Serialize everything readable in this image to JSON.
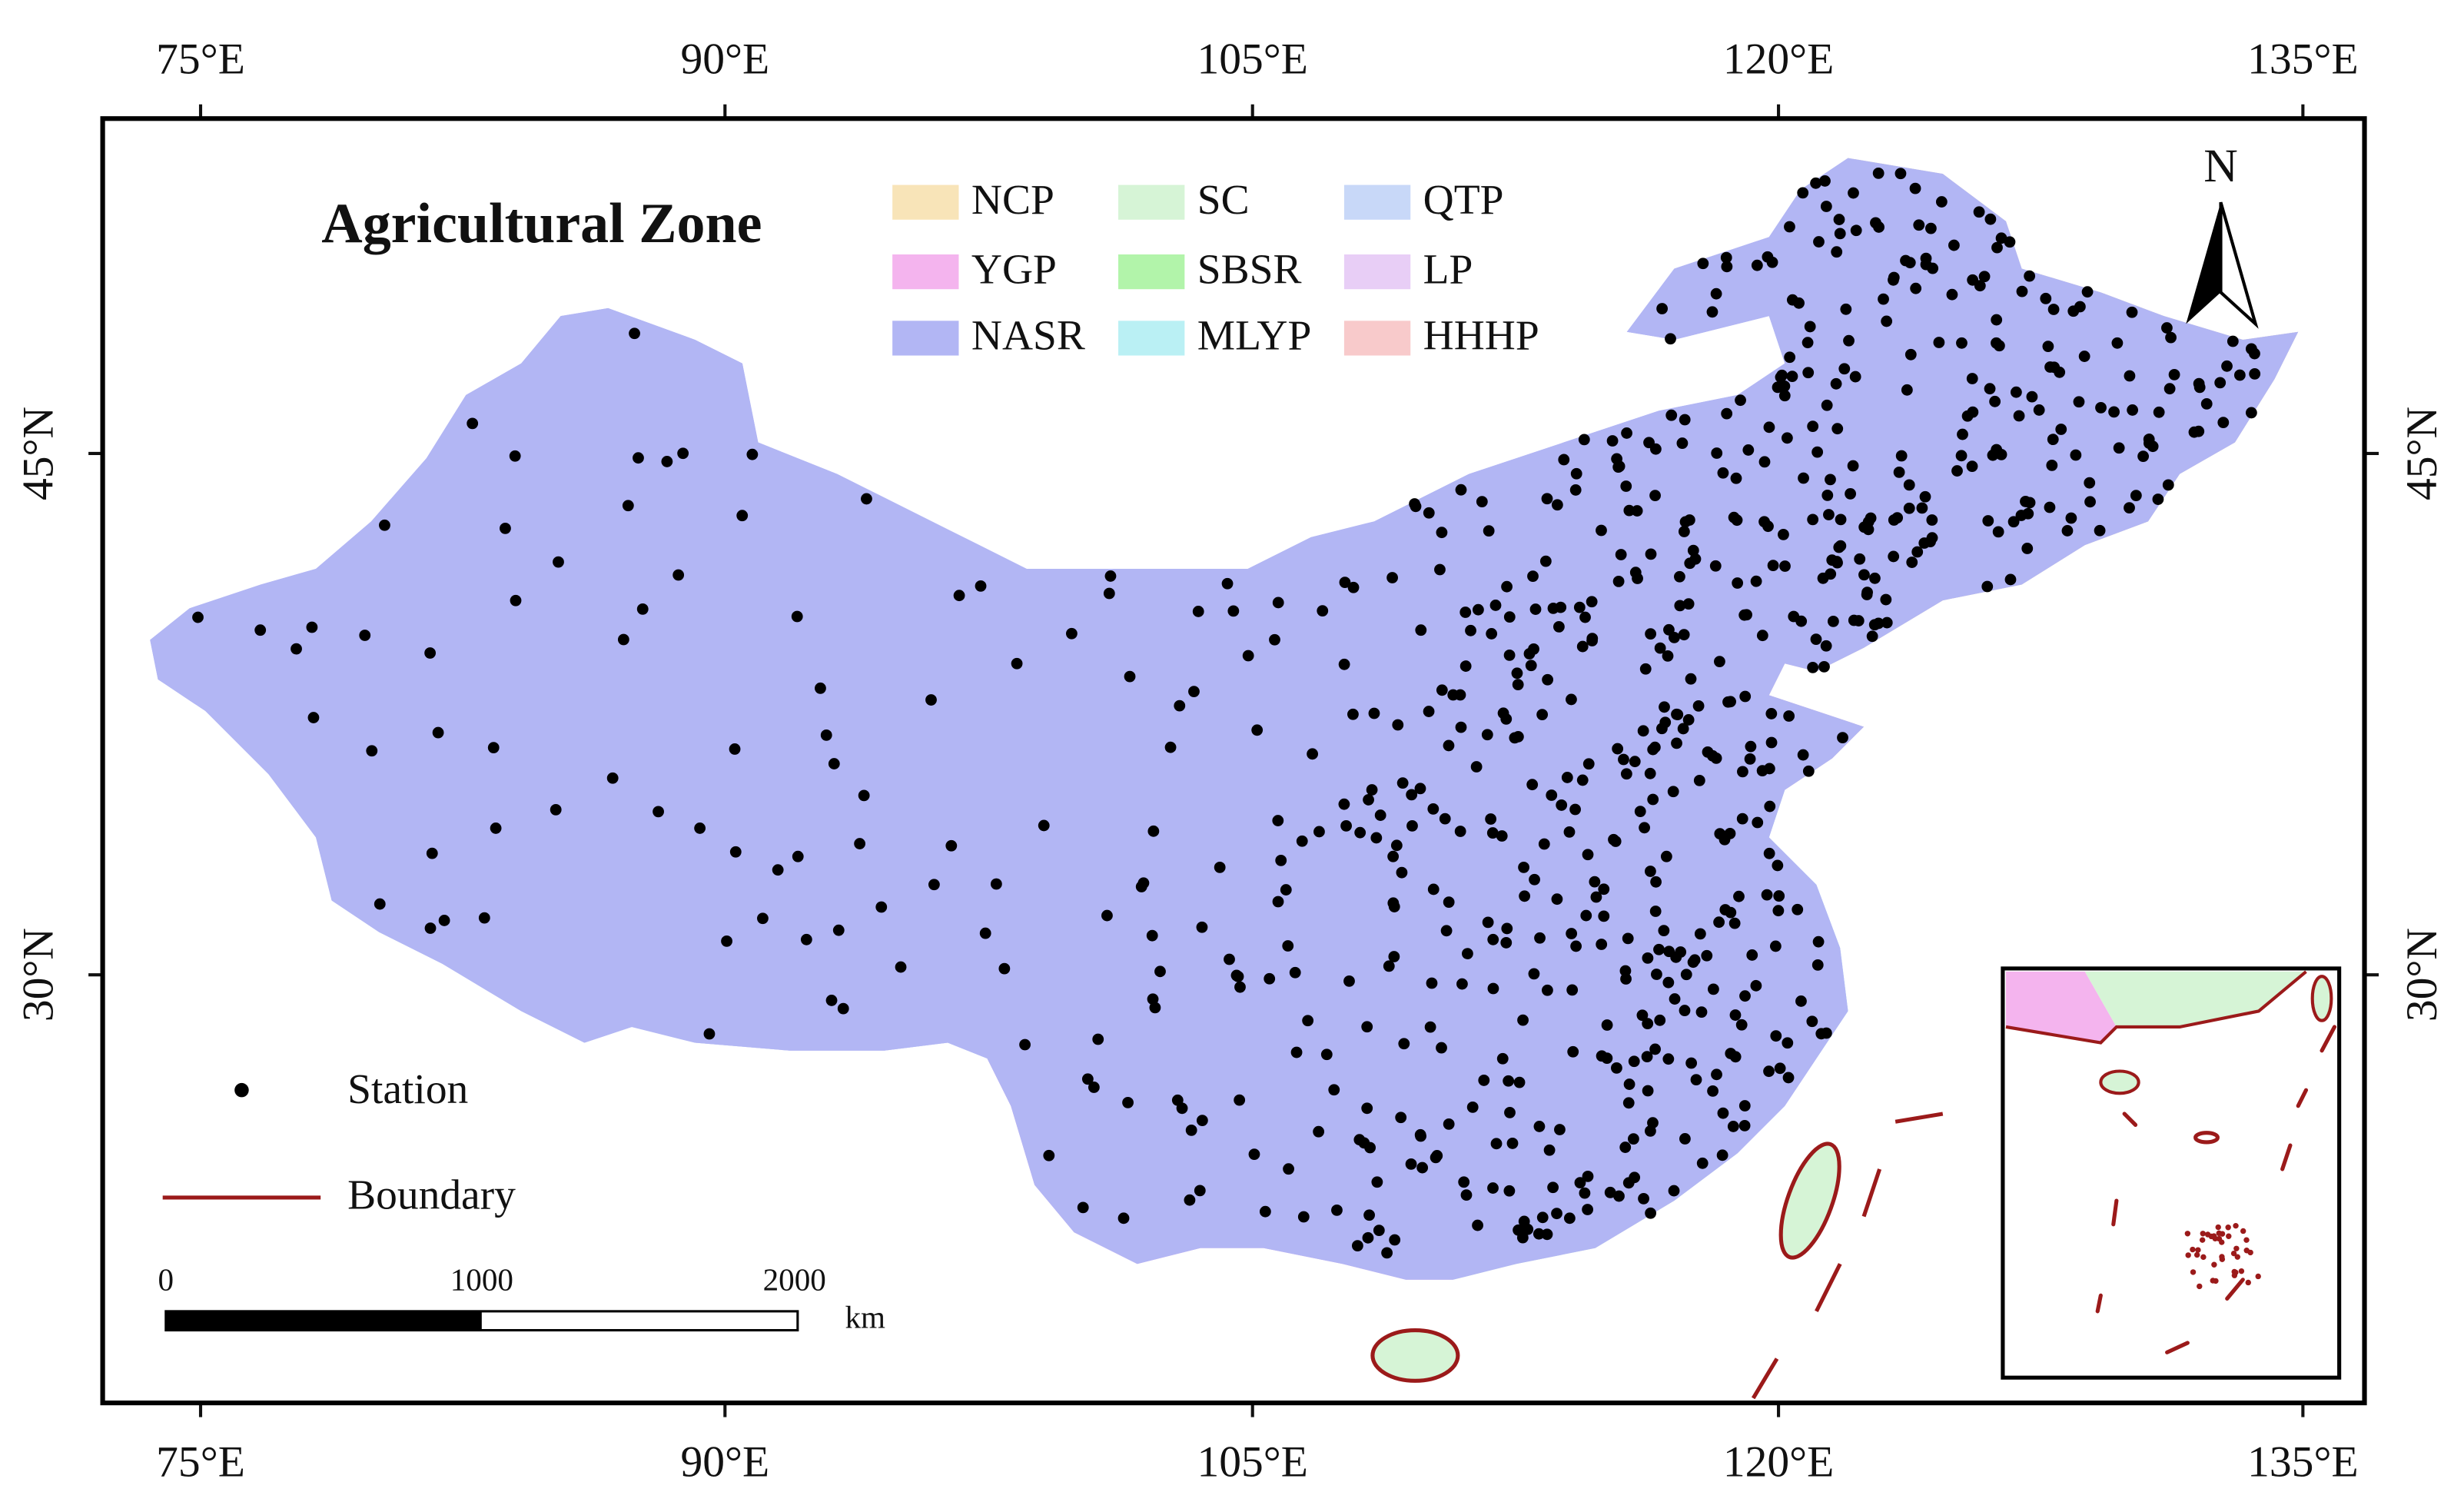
{
  "title": "Agricultural Zone",
  "legend": {
    "zones": [
      {
        "code": "NCP",
        "color": "#f8e4b8"
      },
      {
        "code": "YGP",
        "color": "#f4b4ee"
      },
      {
        "code": "NASR",
        "color": "#b2b6f4"
      },
      {
        "code": "SC",
        "color": "#d6f4d6"
      },
      {
        "code": "SBSR",
        "color": "#b2f4aa"
      },
      {
        "code": "MLYP",
        "color": "#baf0f4"
      },
      {
        "code": "QTP",
        "color": "#c8d8f8"
      },
      {
        "code": "LP",
        "color": "#e8cef6"
      },
      {
        "code": "HHHP",
        "color": "#f8cacb"
      }
    ]
  },
  "station_legend": "Station",
  "boundary_legend": "Boundary",
  "longitude_labels": [
    "75°E",
    "90°E",
    "105°E",
    "120°E",
    "135°E"
  ],
  "latitude_labels": [
    "45°N",
    "30°N"
  ],
  "scale_bar": {
    "labels": [
      "0",
      "1000",
      "2000"
    ],
    "unit": "km"
  },
  "north_label": "N"
}
